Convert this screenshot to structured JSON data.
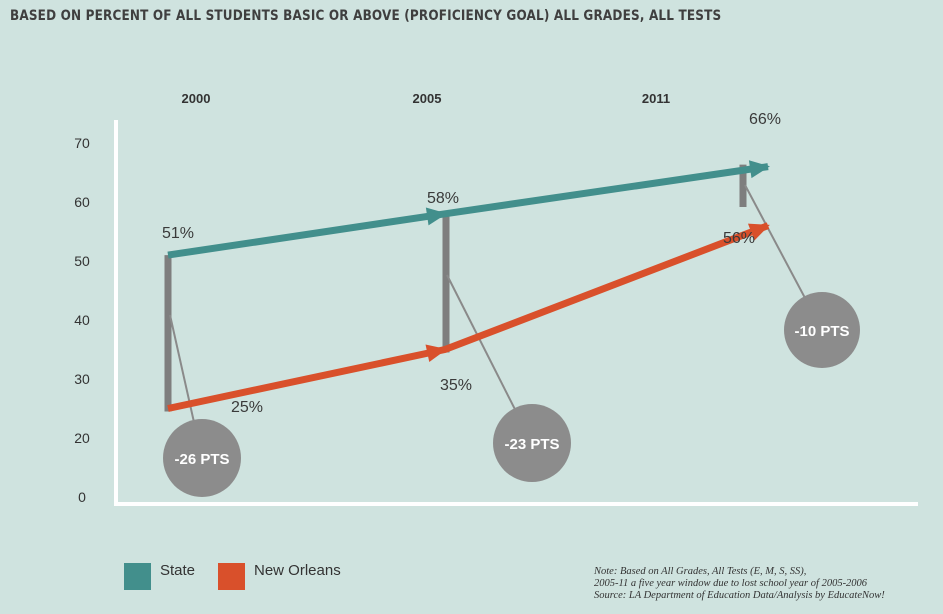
{
  "title": "BASED ON PERCENT OF ALL STUDENTS BASIC OR ABOVE (PROFICIENCY GOAL) ALL GRADES, ALL TESTS",
  "colors": {
    "state": "#428f8c",
    "new_orleans": "#d9502b",
    "gap_bar": "#7e7e7e",
    "bubble": "#8c8c8c",
    "axis": "#ffffff",
    "background": "#cfe3df"
  },
  "chart_data": {
    "type": "line",
    "x": [
      "2000",
      "2005",
      "2011"
    ],
    "ylim": [
      0,
      70
    ],
    "yticks": [
      "0",
      "20",
      "30",
      "40",
      "50",
      "60",
      "70"
    ],
    "grid": false,
    "legend_placement": "bottom-left",
    "series": [
      {
        "name": "State",
        "values": [
          51,
          58,
          66
        ],
        "labels": [
          "51%",
          "58%",
          "66%"
        ]
      },
      {
        "name": "New Orleans",
        "values": [
          25,
          35,
          56
        ],
        "labels": [
          "25%",
          "35%",
          "56%"
        ]
      }
    ],
    "gaps": [
      "-26 PTS",
      "-23 PTS",
      "-10 PTS"
    ]
  },
  "legend": [
    {
      "label": "State"
    },
    {
      "label": "New Orleans"
    }
  ],
  "note": {
    "line1": "Note: Based on All Grades, All Tests (E, M, S, SS),",
    "line2": "2005-11 a five year window due to lost school year of 2005-2006",
    "line3": "Source: LA Department of Education Data/Analysis by EducateNow!"
  }
}
